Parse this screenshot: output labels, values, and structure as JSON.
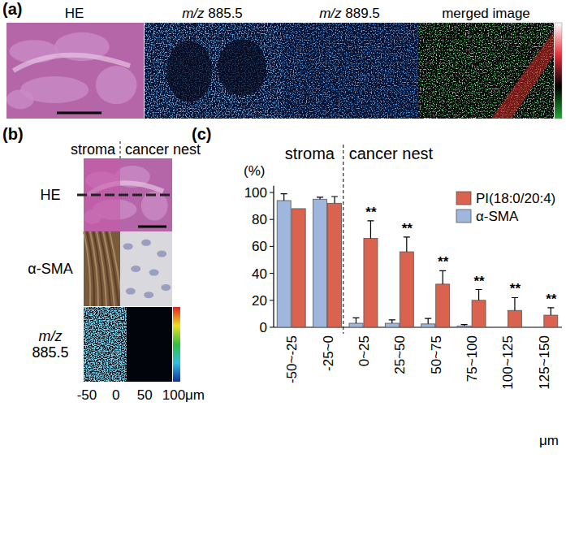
{
  "panel_a": {
    "label": "(a)",
    "images": [
      "HE",
      "m/z 885.5",
      "m/z 889.5",
      "merged image"
    ]
  },
  "panel_b": {
    "label": "(b)",
    "regions": [
      "stroma",
      "cancer nest"
    ],
    "rows": [
      "HE",
      "α-SMA",
      "m/z 885.5"
    ],
    "xticks": [
      -50,
      0,
      50,
      100
    ],
    "x_unit": "μm"
  },
  "chart_data": {
    "type": "bar",
    "label": "(c)",
    "regions": [
      "stroma",
      "cancer nest"
    ],
    "y_label": "(%)",
    "x_label": "μm",
    "categories": [
      "-50~-25",
      "-25~0",
      "0~25",
      "25~50",
      "50~75",
      "75~100",
      "100~125",
      "125~150"
    ],
    "series": [
      {
        "name": "PI(18:0/20:4)",
        "color": "#d9634e",
        "values": [
          88,
          92,
          66,
          56,
          32,
          20,
          12.5,
          9
        ],
        "errors": [
          0,
          5,
          13,
          11,
          10,
          8,
          9.5,
          5.5
        ]
      },
      {
        "name": "α-SMA",
        "color": "#9fb6dd",
        "values": [
          94,
          95,
          3,
          3,
          2.5,
          1,
          0,
          0
        ],
        "errors": [
          5,
          1.5,
          4,
          2.5,
          4,
          1,
          0,
          0
        ]
      }
    ],
    "significance": [
      null,
      null,
      "**",
      "**",
      "**",
      "**",
      "**",
      "**"
    ],
    "ylim": [
      0,
      105
    ],
    "yticks": [
      0,
      20,
      40,
      60,
      80,
      100
    ],
    "legend": "top-right",
    "grid": false
  }
}
